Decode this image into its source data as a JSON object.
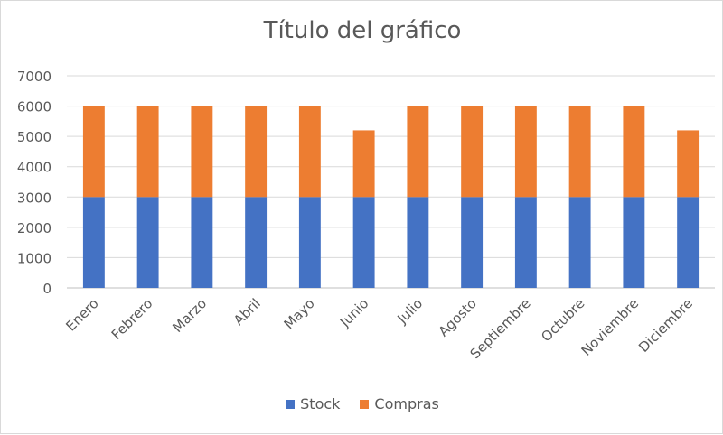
{
  "chart_data": {
    "type": "bar",
    "stacked": true,
    "title": "Título del gráfico",
    "xlabel": "",
    "ylabel": "",
    "categories": [
      "Enero",
      "Febrero",
      "Marzo",
      "Abril",
      "Mayo",
      "Junio",
      "Julio",
      "Agosto",
      "Septiembre",
      "Octubre",
      "Noviembre",
      "Diciembre"
    ],
    "series": [
      {
        "name": "Stock",
        "color": "#4472C4",
        "values": [
          3000,
          3000,
          3000,
          3000,
          3000,
          3000,
          3000,
          3000,
          3000,
          3000,
          3000,
          3000
        ]
      },
      {
        "name": "Compras",
        "color": "#ED7D31",
        "values": [
          3000,
          3000,
          3000,
          3000,
          3000,
          2200,
          3000,
          3000,
          3000,
          3000,
          3000,
          2200
        ]
      }
    ],
    "ylim": [
      0,
      7000
    ],
    "yticks": [
      0,
      1000,
      2000,
      3000,
      4000,
      5000,
      6000,
      7000
    ],
    "grid": true,
    "legend_position": "bottom"
  }
}
